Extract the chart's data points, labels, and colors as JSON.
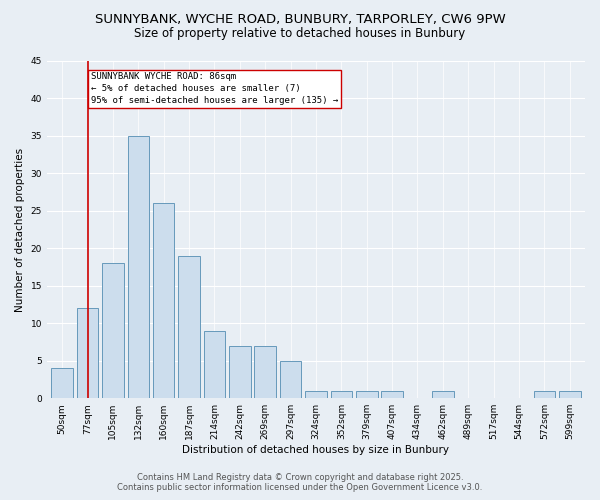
{
  "title_line1": "SUNNYBANK, WYCHE ROAD, BUNBURY, TARPORLEY, CW6 9PW",
  "title_line2": "Size of property relative to detached houses in Bunbury",
  "xlabel": "Distribution of detached houses by size in Bunbury",
  "ylabel": "Number of detached properties",
  "bar_color": "#ccdded",
  "bar_edge_color": "#6699bb",
  "categories": [
    "50sqm",
    "77sqm",
    "105sqm",
    "132sqm",
    "160sqm",
    "187sqm",
    "214sqm",
    "242sqm",
    "269sqm",
    "297sqm",
    "324sqm",
    "352sqm",
    "379sqm",
    "407sqm",
    "434sqm",
    "462sqm",
    "489sqm",
    "517sqm",
    "544sqm",
    "572sqm",
    "599sqm"
  ],
  "values": [
    4,
    12,
    18,
    35,
    26,
    19,
    9,
    7,
    7,
    5,
    1,
    1,
    1,
    1,
    0,
    1,
    0,
    0,
    0,
    1,
    1
  ],
  "vline_x": 1,
  "vline_color": "#cc0000",
  "annotation_text": "SUNNYBANK WYCHE ROAD: 86sqm\n← 5% of detached houses are smaller (7)\n95% of semi-detached houses are larger (135) →",
  "annotation_box_color": "#ffffff",
  "annotation_box_edge_color": "#cc0000",
  "ylim": [
    0,
    45
  ],
  "yticks": [
    0,
    5,
    10,
    15,
    20,
    25,
    30,
    35,
    40,
    45
  ],
  "background_color": "#e8eef4",
  "grid_color": "#ffffff",
  "footer_line1": "Contains HM Land Registry data © Crown copyright and database right 2025.",
  "footer_line2": "Contains public sector information licensed under the Open Government Licence v3.0.",
  "title_fontsize": 9.5,
  "subtitle_fontsize": 8.5,
  "annotation_fontsize": 6.5,
  "axis_label_fontsize": 7.5,
  "tick_fontsize": 6.5,
  "footer_fontsize": 6.0
}
